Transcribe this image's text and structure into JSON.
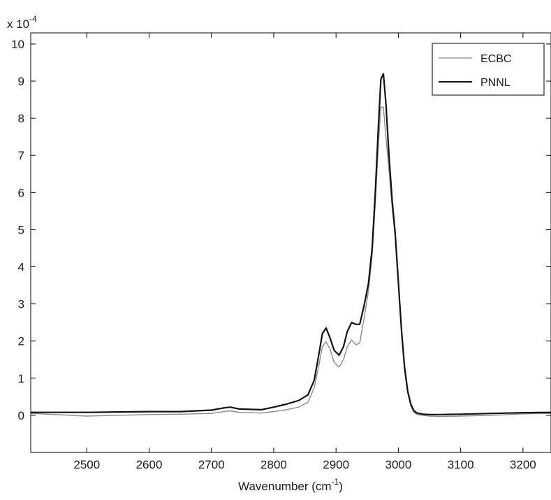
{
  "chart_data": {
    "type": "line",
    "title": "",
    "xlabel": {
      "main": "Wavenumber (cm",
      "sup": "-1",
      "end": ")"
    },
    "ylabel": "",
    "y_multiplier": {
      "prefix": "x 10",
      "exp": "-4"
    },
    "xlim": [
      2410,
      3245
    ],
    "ylim": [
      -1,
      10.3
    ],
    "x_ticks": [
      2500,
      2600,
      2700,
      2800,
      2900,
      3000,
      3100,
      3200
    ],
    "y_ticks": [
      0,
      1,
      2,
      3,
      4,
      5,
      6,
      7,
      8,
      9,
      10
    ],
    "grid": false,
    "legend_position": "top-right",
    "series": [
      {
        "name": "ECBC",
        "color": "#8a8a8a",
        "x": [
          2410,
          2450,
          2500,
          2550,
          2600,
          2650,
          2700,
          2720,
          2730,
          2745,
          2780,
          2800,
          2820,
          2840,
          2855,
          2865,
          2872,
          2878,
          2884,
          2890,
          2897,
          2905,
          2912,
          2918,
          2925,
          2932,
          2938,
          2945,
          2952,
          2958,
          2963,
          2968,
          2972,
          2976,
          2980,
          2985,
          2990,
          2995,
          3000,
          3005,
          3010,
          3015,
          3020,
          3025,
          3030,
          3040,
          3050,
          3070,
          3100,
          3150,
          3200,
          3245
        ],
        "y": [
          0.05,
          0.02,
          -0.02,
          0.0,
          0.02,
          0.03,
          0.05,
          0.1,
          0.12,
          0.08,
          0.06,
          0.1,
          0.15,
          0.22,
          0.35,
          0.75,
          1.3,
          1.85,
          1.98,
          1.8,
          1.42,
          1.3,
          1.5,
          1.85,
          2.03,
          1.9,
          1.95,
          2.6,
          3.35,
          4.3,
          5.7,
          7.3,
          8.3,
          8.3,
          7.5,
          6.6,
          5.6,
          4.8,
          3.5,
          2.2,
          1.2,
          0.6,
          0.25,
          0.08,
          0.02,
          0.0,
          -0.02,
          -0.03,
          -0.02,
          0.0,
          0.04,
          0.05
        ]
      },
      {
        "name": "PNNL",
        "color": "#111111",
        "x": [
          2410,
          2450,
          2500,
          2550,
          2600,
          2650,
          2700,
          2720,
          2730,
          2745,
          2780,
          2800,
          2820,
          2840,
          2855,
          2865,
          2872,
          2878,
          2884,
          2890,
          2897,
          2905,
          2912,
          2918,
          2925,
          2932,
          2938,
          2945,
          2952,
          2958,
          2963,
          2968,
          2972,
          2976,
          2980,
          2985,
          2990,
          2995,
          3000,
          3005,
          3010,
          3015,
          3020,
          3025,
          3030,
          3040,
          3050,
          3070,
          3100,
          3150,
          3200,
          3245
        ],
        "y": [
          0.08,
          0.08,
          0.08,
          0.09,
          0.1,
          0.1,
          0.14,
          0.2,
          0.22,
          0.17,
          0.15,
          0.22,
          0.3,
          0.4,
          0.55,
          0.95,
          1.6,
          2.2,
          2.35,
          2.1,
          1.75,
          1.62,
          1.85,
          2.25,
          2.5,
          2.45,
          2.45,
          2.95,
          3.55,
          4.5,
          6.0,
          7.8,
          9.05,
          9.2,
          8.4,
          7.0,
          5.8,
          4.9,
          3.6,
          2.3,
          1.3,
          0.65,
          0.3,
          0.12,
          0.06,
          0.03,
          0.02,
          0.02,
          0.03,
          0.05,
          0.07,
          0.08
        ]
      }
    ]
  }
}
